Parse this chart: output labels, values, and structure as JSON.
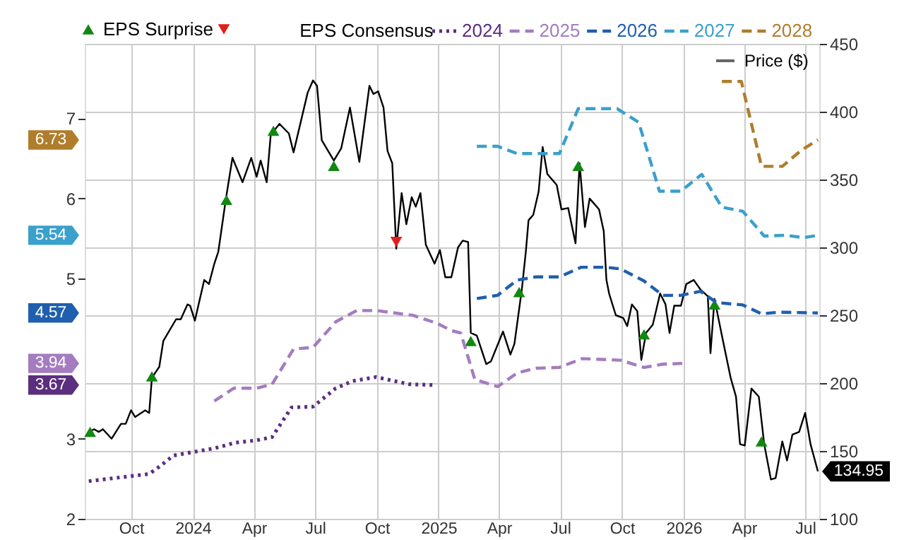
{
  "chart_data": {
    "type": "line",
    "xlim": [
      "2023-07-24",
      "2026-07-22"
    ],
    "xticks": [
      {
        "value": "2023-10-01",
        "label": "Oct"
      },
      {
        "value": "2024-01-01",
        "label": "2024"
      },
      {
        "value": "2024-04-01",
        "label": "Apr"
      },
      {
        "value": "2024-07-01",
        "label": "Jul"
      },
      {
        "value": "2024-10-01",
        "label": "Oct"
      },
      {
        "value": "2025-01-01",
        "label": "2025"
      },
      {
        "value": "2025-04-01",
        "label": "Apr"
      },
      {
        "value": "2025-07-01",
        "label": "Jul"
      },
      {
        "value": "2025-10-01",
        "label": "Oct"
      },
      {
        "value": "2026-01-01",
        "label": "2026"
      },
      {
        "value": "2026-04-01",
        "label": "Apr"
      },
      {
        "value": "2026-07-01",
        "label": "Jul"
      }
    ],
    "ylim": [
      2,
      7.93
    ],
    "yticks": [
      2,
      3,
      5,
      6,
      7
    ],
    "y2lim": [
      100,
      450
    ],
    "y2ticks": [
      100,
      150,
      200,
      250,
      300,
      350,
      400,
      450
    ],
    "annotations": [
      "6.73",
      "5.54",
      "4.57",
      "3.94",
      "3.67"
    ],
    "grid": true,
    "legend": "top",
    "legend_title": "EPS Consensus",
    "marker": "none",
    "series": [
      {
        "name": "EPS Surprise",
        "type": "scatter",
        "axis": "y2",
        "marker": "triangle",
        "color": "#118811",
        "x": [
          "2023-08-01",
          "2023-11-01",
          "2024-02-20",
          "2024-04-30",
          "2024-07-29",
          "2025-02-18",
          "2025-05-01",
          "2025-07-28",
          "2025-11-03",
          "2026-02-16",
          "2026-04-27"
        ],
        "values": [
          164,
          205,
          335,
          386,
          360,
          231,
          267,
          360,
          236,
          258,
          157
        ]
      },
      {
        "type": "scatter",
        "axis": "y2",
        "marker": "triangle-down",
        "color": "#e0201a",
        "x": [
          "2024-10-30"
        ],
        "values": [
          304
        ]
      },
      {
        "name": "2024",
        "line_style": "dotted",
        "color": "#5c2e7e",
        "x": [
          "2023-07-30",
          "2023-10-28",
          "2023-11-12",
          "2023-12-03",
          "2024-02-02",
          "2024-03-04",
          "2024-04-05",
          "2024-04-28",
          "2024-05-27",
          "2024-06-28",
          "2024-08-01",
          "2024-08-26",
          "2024-09-30",
          "2024-11-18",
          "2024-12-26"
        ],
        "values": [
          2.47,
          2.56,
          2.65,
          2.79,
          2.88,
          2.95,
          2.98,
          3.02,
          3.39,
          3.4,
          3.63,
          3.72,
          3.77,
          3.68,
          3.67
        ]
      },
      {
        "name": "2025",
        "line_style": "dashed",
        "color": "#a47cc0",
        "x": [
          "2024-02-02",
          "2024-03-02",
          "2024-04-05",
          "2024-04-28",
          "2024-05-30",
          "2024-06-28",
          "2024-08-01",
          "2024-09-01",
          "2024-09-30",
          "2024-11-24",
          "2024-12-30",
          "2025-01-20",
          "2025-02-03",
          "2025-02-24",
          "2025-03-30",
          "2025-04-28",
          "2025-05-26",
          "2025-06-30",
          "2025-08-03",
          "2025-09-29",
          "2025-11-03",
          "2025-12-01",
          "2025-12-30"
        ],
        "values": [
          3.47,
          3.63,
          3.63,
          3.68,
          4.12,
          4.14,
          4.46,
          4.6,
          4.6,
          4.54,
          4.44,
          4.35,
          4.32,
          3.74,
          3.65,
          3.82,
          3.88,
          3.89,
          4.0,
          3.98,
          3.89,
          3.93,
          3.94
        ]
      },
      {
        "name": "2026",
        "line_style": "dashed",
        "color": "#1f5fae",
        "x": [
          "2025-02-27",
          "2025-03-30",
          "2025-04-28",
          "2025-05-26",
          "2025-06-30",
          "2025-08-01",
          "2025-09-08",
          "2025-09-29",
          "2025-11-03",
          "2025-12-01",
          "2025-12-28",
          "2026-01-26",
          "2026-02-19",
          "2026-03-30",
          "2026-04-27",
          "2026-05-24",
          "2026-07-20"
        ],
        "values": [
          4.75,
          4.79,
          4.98,
          5.02,
          5.02,
          5.14,
          5.14,
          5.12,
          4.97,
          4.79,
          4.79,
          4.84,
          4.7,
          4.67,
          4.56,
          4.58,
          4.57
        ]
      },
      {
        "name": "2027",
        "line_style": "dashed",
        "color": "#3aa0cc",
        "x": [
          "2025-02-27",
          "2025-03-30",
          "2025-04-28",
          "2025-06-30",
          "2025-07-28",
          "2025-09-24",
          "2025-10-26",
          "2025-11-26",
          "2025-12-28",
          "2026-01-28",
          "2026-02-27",
          "2026-03-30",
          "2026-05-01",
          "2026-06-01",
          "2026-06-29",
          "2026-07-20"
        ],
        "values": [
          6.65,
          6.65,
          6.56,
          6.56,
          7.12,
          7.12,
          6.95,
          6.09,
          6.09,
          6.3,
          5.89,
          5.84,
          5.53,
          5.54,
          5.51,
          5.54
        ]
      },
      {
        "name": "2028",
        "line_style": "dashed",
        "color": "#b07d2c",
        "x": [
          "2026-02-27",
          "2026-03-28",
          "2026-04-27",
          "2026-05-28",
          "2026-06-25",
          "2026-07-20"
        ],
        "values": [
          7.46,
          7.46,
          6.4,
          6.4,
          6.6,
          6.73
        ]
      },
      {
        "name": "Price ($)",
        "axis": "y2",
        "line_style": "solid",
        "color": "#000000",
        "x": [
          "2023-07-30",
          "2023-08-07",
          "2023-08-14",
          "2023-08-20",
          "2023-09-02",
          "2023-09-16",
          "2023-09-23",
          "2023-10-01",
          "2023-10-07",
          "2023-10-22",
          "2023-10-28",
          "2023-11-01",
          "2023-11-12",
          "2023-11-18",
          "2023-12-07",
          "2023-12-14",
          "2023-12-24",
          "2023-12-28",
          "2024-01-04",
          "2024-01-18",
          "2024-01-25",
          "2024-02-02",
          "2024-02-08",
          "2024-02-19",
          "2024-02-29",
          "2024-03-15",
          "2024-03-28",
          "2024-04-05",
          "2024-04-11",
          "2024-04-20",
          "2024-04-26",
          "2024-05-09",
          "2024-05-23",
          "2024-05-30",
          "2024-06-20",
          "2024-06-28",
          "2024-07-04",
          "2024-07-11",
          "2024-07-29",
          "2024-08-09",
          "2024-08-22",
          "2024-09-05",
          "2024-09-20",
          "2024-09-26",
          "2024-10-03",
          "2024-10-11",
          "2024-10-17",
          "2024-10-24",
          "2024-10-30",
          "2024-11-07",
          "2024-11-14",
          "2024-11-22",
          "2024-11-28",
          "2024-12-05",
          "2024-12-13",
          "2024-12-26",
          "2025-01-03",
          "2025-01-11",
          "2025-01-20",
          "2025-01-30",
          "2025-02-06",
          "2025-02-14",
          "2025-02-18",
          "2025-02-27",
          "2025-03-13",
          "2025-03-20",
          "2025-04-07",
          "2025-04-18",
          "2025-04-24",
          "2025-05-05",
          "2025-05-11",
          "2025-05-15",
          "2025-05-22",
          "2025-05-30",
          "2025-06-05",
          "2025-06-12",
          "2025-06-26",
          "2025-07-03",
          "2025-07-13",
          "2025-07-24",
          "2025-07-30",
          "2025-08-07",
          "2025-08-14",
          "2025-08-28",
          "2025-09-04",
          "2025-09-08",
          "2025-09-12",
          "2025-09-22",
          "2025-10-03",
          "2025-10-09",
          "2025-10-16",
          "2025-10-24",
          "2025-10-30",
          "2025-11-06",
          "2025-11-16",
          "2025-11-27",
          "2025-12-05",
          "2025-12-11",
          "2025-12-18",
          "2025-12-28",
          "2026-01-05",
          "2026-01-16",
          "2026-01-26",
          "2026-02-06",
          "2026-02-10",
          "2026-02-16",
          "2026-02-27",
          "2026-03-12",
          "2026-03-20",
          "2026-03-26",
          "2026-04-02",
          "2026-04-12",
          "2026-04-23",
          "2026-05-01",
          "2026-05-11",
          "2026-05-18",
          "2026-05-28",
          "2026-06-04",
          "2026-06-12",
          "2026-06-22",
          "2026-07-01",
          "2026-07-09",
          "2026-07-20"
        ],
        "values": [
          164,
          166,
          164,
          166,
          159,
          170,
          170,
          180,
          175,
          180,
          178,
          204,
          212,
          231,
          247,
          247,
          258,
          257,
          246,
          276,
          273,
          288,
          297,
          335,
          366,
          348,
          366,
          352,
          364,
          348,
          383,
          391,
          384,
          370,
          414,
          423,
          419,
          379,
          364,
          373,
          403,
          363,
          419,
          413,
          415,
          403,
          371,
          362,
          299,
          340,
          317,
          337,
          330,
          340,
          302,
          288,
          298,
          278,
          278,
          300,
          305,
          304,
          237,
          235,
          214,
          216,
          238,
          221,
          229,
          269,
          297,
          320,
          324,
          341,
          374,
          354,
          346,
          328,
          329,
          303,
          362,
          315,
          336,
          328,
          312,
          276,
          266,
          250,
          248,
          242,
          258,
          253,
          217,
          237,
          243,
          266,
          258,
          237,
          257,
          257,
          273,
          276,
          269,
          264,
          222,
          262,
          235,
          204,
          190,
          155,
          154,
          196,
          190,
          155,
          129,
          130,
          157,
          143,
          162,
          164,
          178,
          155,
          134.95
        ],
        "value_labels": [
          null,
          null,
          null,
          null,
          null,
          null,
          null,
          null,
          null,
          null,
          null,
          null,
          null,
          null,
          null,
          null,
          null,
          null,
          null,
          null,
          null,
          null,
          null,
          null,
          null,
          null,
          null,
          null,
          null,
          null,
          null,
          null,
          null,
          null,
          null,
          null,
          null,
          null,
          null,
          null,
          null,
          null,
          null,
          null,
          null,
          null,
          null,
          null,
          null,
          null,
          null,
          null,
          null,
          null,
          null,
          null,
          null,
          null,
          null,
          null,
          null,
          null,
          null,
          null,
          null,
          null,
          null,
          null,
          null,
          null,
          null,
          null,
          null,
          null,
          null,
          null,
          null,
          null,
          null,
          null,
          null,
          null,
          null,
          null,
          null,
          null,
          null,
          null,
          null,
          null,
          null,
          null,
          null,
          null,
          null,
          null,
          null,
          null,
          null,
          null,
          null,
          null,
          null,
          null,
          null,
          null,
          null,
          null,
          null,
          null,
          null,
          null,
          null,
          null,
          null,
          null,
          null,
          null,
          null,
          null,
          null,
          null,
          "134.95"
        ]
      }
    ]
  }
}
